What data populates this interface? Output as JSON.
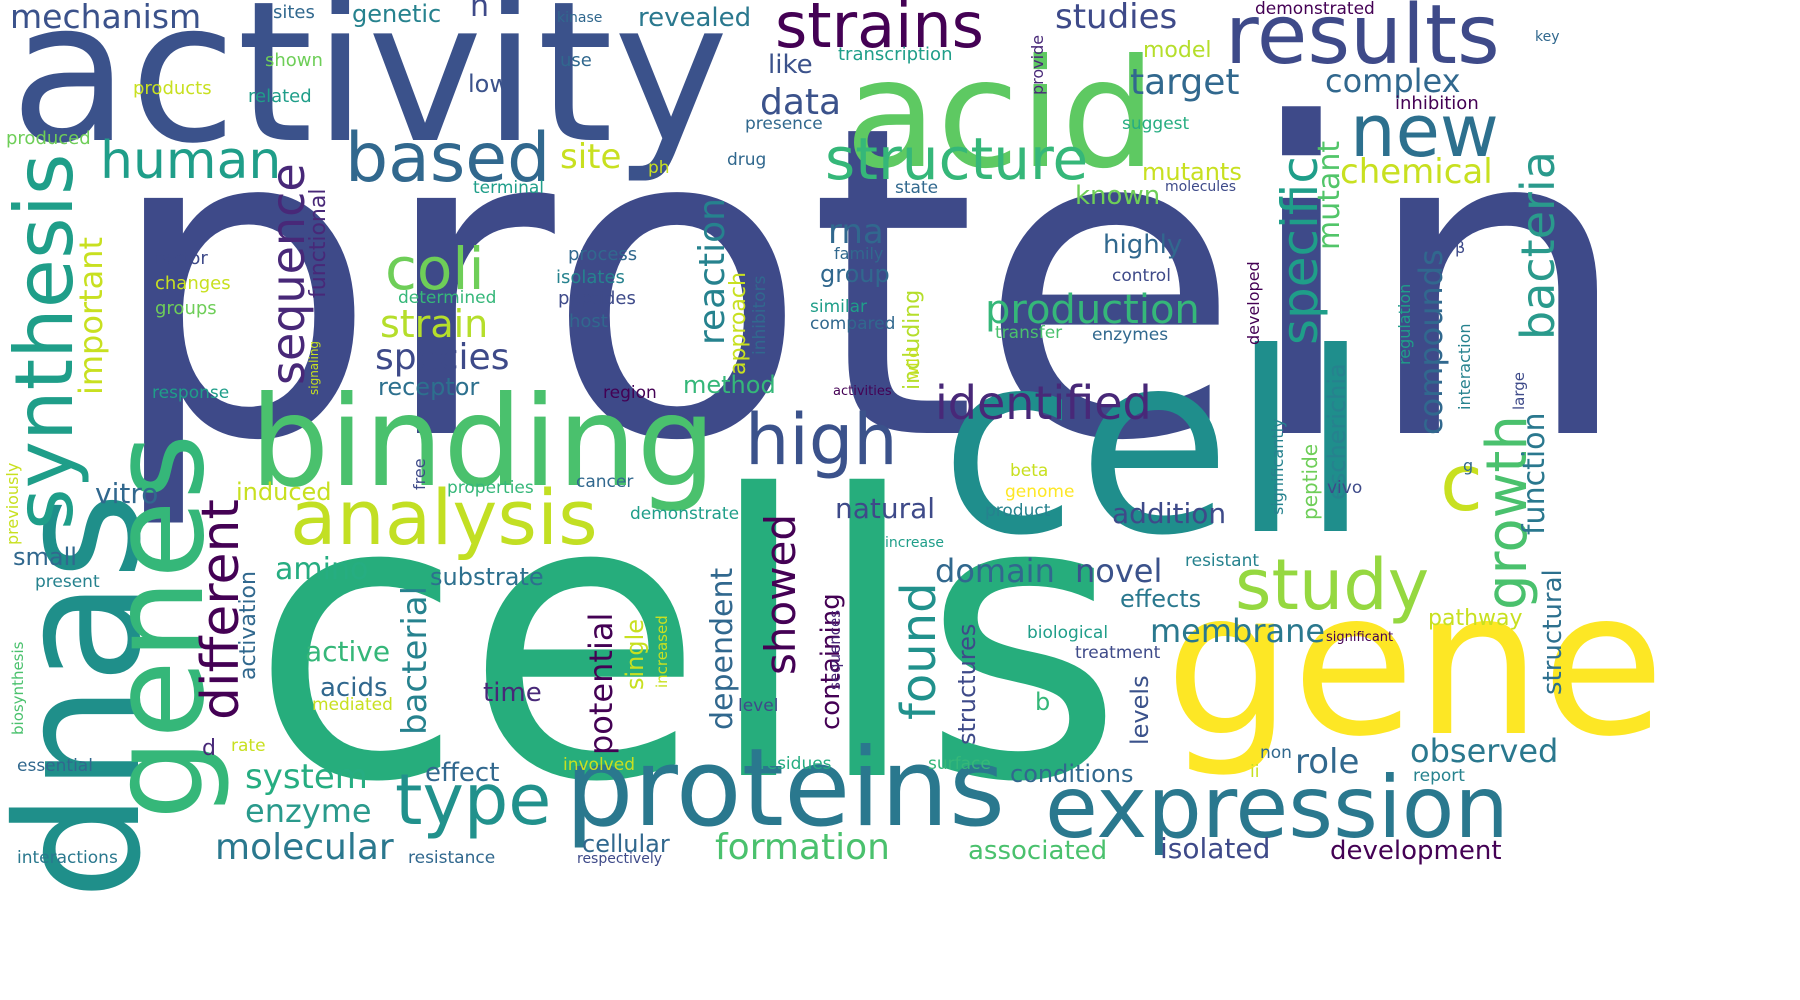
{
  "colors": {
    "background": "#ffffff",
    "palette": [
      "#440154",
      "#482878",
      "#3e4a89",
      "#31688e",
      "#26828e",
      "#1f9e89",
      "#35b779",
      "#6ece58",
      "#b5de2b",
      "#fde725"
    ]
  },
  "words": [
    "protein",
    "cells",
    "cell",
    "activity",
    "gene",
    "proteins",
    "dnas",
    "acid",
    "binding",
    "genes",
    "expression",
    "results",
    "analysis",
    "synthesis",
    "strains",
    "type",
    "high",
    "based",
    "study",
    "structure",
    "human",
    "new",
    "coli",
    "different",
    "specific",
    "identified",
    "bacteria",
    "growth",
    "found",
    "sequence",
    "showed",
    "production",
    "c",
    "mechanism",
    "studies",
    "data",
    "target",
    "strain",
    "site",
    "species",
    "complex",
    "important",
    "potential",
    "domain",
    "system",
    "observed",
    "formation",
    "molecular",
    "role",
    "novel",
    "membrane",
    "mutant",
    "enzyme",
    "amino",
    "reaction",
    "chemical",
    "function",
    "structural",
    "compounds",
    "like",
    "revealed",
    "bacterial",
    "dependent",
    "containing",
    "time",
    "acids",
    "active",
    "substrate",
    "effect",
    "vitro",
    "isolated",
    "development",
    "associated",
    "conditions",
    "effects",
    "addition",
    "natural",
    "mutants",
    "known",
    "highly",
    "rna",
    "group",
    "structures",
    "levels",
    "escherichia",
    "approach",
    "low",
    "genetic",
    "model",
    "receptor",
    "including",
    "single",
    "functional",
    "pathway",
    "method",
    "small",
    "induced",
    "activation",
    "cellular",
    "b",
    "d",
    "n",
    "sites",
    "transcription",
    "shown",
    "products",
    "related",
    "produced",
    "use",
    "kinase",
    "demonstrated",
    "key",
    "provide",
    "inhibition",
    "presence",
    "suggest",
    "ph",
    "drug",
    "terminal",
    "state",
    "molecules",
    "factor",
    "changes",
    "groups",
    "process",
    "isolates",
    "peptides",
    "host",
    "family",
    "similar",
    "compared",
    "determined",
    "transfer",
    "enzymes",
    "inhibitors",
    "control",
    "developed",
    "β",
    "regulation",
    "interaction",
    "large",
    "response",
    "region",
    "activities",
    "signaling",
    "free",
    "properties",
    "cancer",
    "demonstrate",
    "beta",
    "genome",
    "product",
    "previously",
    "increase",
    "resistant",
    "present",
    "g",
    "vivo",
    "significantly",
    "peptide",
    "wild",
    "biological",
    "treatment",
    "significant",
    "biosynthesis",
    "increased",
    "sequences",
    "mediated",
    "level",
    "essential",
    "involved",
    "residues",
    "surface",
    "non",
    "ii",
    "report",
    "interactions",
    "resistance",
    "respectively",
    "rate"
  ]
}
